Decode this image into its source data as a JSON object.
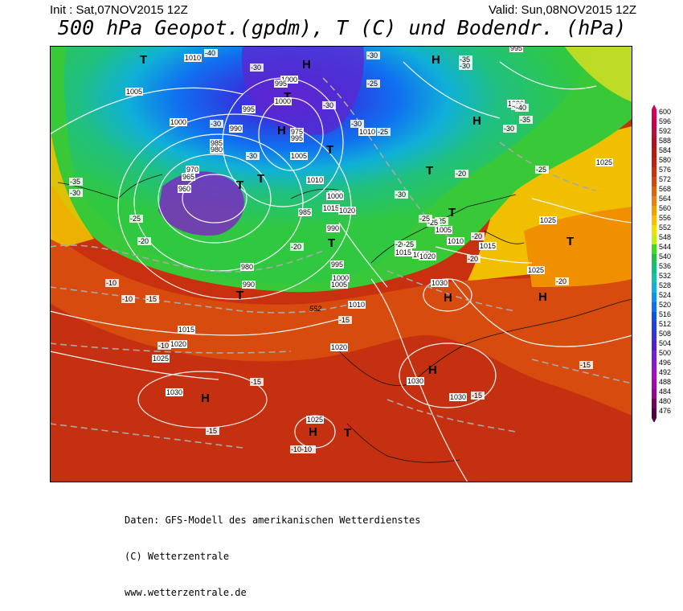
{
  "header": {
    "init": "Init : Sat,07NOV2015 12Z",
    "valid": "Valid: Sun,08NOV2015 12Z",
    "title": "500 hPa Geopot.(gpdm), T (C) und Bodendr. (hPa)"
  },
  "footer": {
    "line1": "Daten: GFS-Modell des amerikanischen Wetterdienstes",
    "line2": "(C) Wetterzentrale",
    "line3": "www.wetterzentrale.de"
  },
  "colors": {
    "background": "#ffffff",
    "contour": "#ffffff",
    "isotherm": "#b0b0b0",
    "coastline": "#111111"
  },
  "scale": {
    "levels": [
      "600",
      "596",
      "592",
      "588",
      "584",
      "580",
      "576",
      "572",
      "568",
      "564",
      "560",
      "556",
      "552",
      "548",
      "544",
      "540",
      "536",
      "532",
      "528",
      "524",
      "520",
      "516",
      "512",
      "508",
      "504",
      "500",
      "496",
      "492",
      "488",
      "484",
      "480",
      "476"
    ],
    "colors": [
      "#d0005a",
      "#c8004a",
      "#b8103a",
      "#b01020",
      "#b81810",
      "#c02010",
      "#c83010",
      "#d04810",
      "#dc6410",
      "#e88010",
      "#f0a000",
      "#f8c000",
      "#f0e000",
      "#c0f010",
      "#40d820",
      "#20c048",
      "#10c080",
      "#10c0b0",
      "#10b0d8",
      "#1090f0",
      "#1070f0",
      "#1050e8",
      "#2040e0",
      "#3830d8",
      "#5020d0",
      "#7020d0",
      "#8818c8",
      "#a010c0",
      "#a008a8",
      "#900888",
      "#700060",
      "#500040"
    ]
  },
  "map": {
    "pressure_labels": [
      "1010",
      "1010",
      "1005",
      "1000",
      "1000",
      "1000",
      "995",
      "995",
      "995",
      "990",
      "990",
      "985",
      "980",
      "975",
      "970",
      "965",
      "960",
      "980",
      "985",
      "980",
      "990",
      "995",
      "1000",
      "1005",
      "1010",
      "1015",
      "1020",
      "1025",
      "1020",
      "1015",
      "1025",
      "1020",
      "1025",
      "1030",
      "1030",
      "1030",
      "1030",
      "1025",
      "1025",
      "1025",
      "1005",
      "1010",
      "1015",
      "1000",
      "995",
      "1005",
      "1010",
      "1015",
      "1020",
      "1030"
    ],
    "temperature_labels": [
      "-40",
      "-30",
      "-40",
      "-35",
      "-30",
      "-30",
      "-25",
      "-30",
      "-30",
      "-25",
      "-30",
      "-40",
      "-35",
      "-30",
      "-25",
      "-20",
      "-20",
      "-25",
      "-25",
      "-20",
      "-30",
      "-35",
      "-30",
      "-25",
      "-20",
      "-15",
      "-10",
      "-10",
      "-15",
      "-10",
      "-15",
      "-15",
      "-15",
      "-10-10",
      "-20",
      "-20",
      "-25",
      "-30",
      "-25",
      "-20",
      "-15"
    ],
    "geopotential_labels": [
      "552"
    ],
    "high_symbol": "H",
    "low_symbol": "T"
  }
}
